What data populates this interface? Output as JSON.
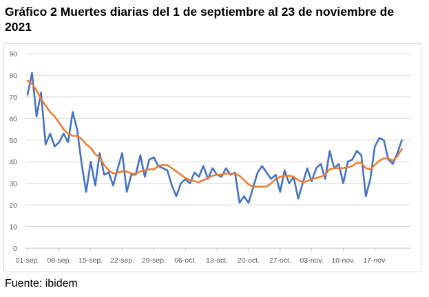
{
  "title": "Gráfico 2 Muertes diarias del 1 de septiembre al 23 de noviembre de 2021",
  "source": "Fuente: ibidem",
  "chart_data": {
    "type": "line",
    "title": "Gráfico 2 Muertes diarias del 1 de septiembre al 23 de noviembre de 2021",
    "xlabel": "",
    "ylabel": "",
    "ylim": [
      0,
      90
    ],
    "yticks": [
      0,
      10,
      20,
      30,
      40,
      50,
      60,
      70,
      80,
      90
    ],
    "grid": true,
    "legend": "none",
    "x_tick_labels": [
      "01-sep.",
      "08-sep.",
      "15-sep.",
      "22-sep.",
      "29-sep.",
      "06-oct.",
      "13-oct.",
      "20-oct.",
      "27-oct.",
      "03-nov.",
      "10-nov.",
      "17-nov."
    ],
    "x_tick_interval_days": 7,
    "series": [
      {
        "color": "#4472c4",
        "values": [
          71,
          81,
          61,
          72,
          48,
          53,
          47,
          49,
          53,
          49,
          63,
          55,
          39,
          26,
          40,
          29,
          44,
          34,
          35,
          29,
          37,
          44,
          26,
          34,
          34,
          43,
          33,
          41,
          42,
          38,
          37,
          36,
          29,
          24,
          30,
          32,
          30,
          35,
          33,
          38,
          32,
          37,
          34,
          33,
          37,
          34,
          35,
          21,
          24,
          21,
          28,
          35,
          38,
          35,
          32,
          34,
          26,
          36,
          30,
          33,
          23,
          30,
          37,
          31,
          37,
          39,
          32,
          45,
          37,
          39,
          30,
          40,
          41,
          45,
          43,
          24,
          32,
          47,
          51,
          50,
          41,
          39,
          44,
          50
        ]
      },
      {
        "color": "#ed7d31",
        "values": [
          77.5,
          76,
          73,
          69,
          66,
          63,
          61,
          58,
          55,
          53,
          52,
          52,
          50.5,
          48,
          46.5,
          43.5,
          42,
          38.5,
          36,
          34.5,
          35,
          35.5,
          35.5,
          34.5,
          34.5,
          35.5,
          36,
          36.5,
          36.5,
          38,
          38.5,
          38.5,
          37,
          35.5,
          34,
          32.5,
          31.5,
          31,
          30.5,
          31.5,
          32.5,
          33.5,
          34,
          34,
          34.5,
          34.5,
          34.5,
          33.5,
          31.5,
          29.5,
          28.5,
          28.5,
          28.5,
          28.5,
          30,
          32,
          33,
          33.5,
          33.5,
          33,
          31.5,
          30.5,
          31,
          32,
          32.5,
          33,
          34,
          36.5,
          37,
          37,
          37,
          37.5,
          38,
          39.5,
          39.5,
          37,
          36.5,
          38.5,
          40.5,
          41.5,
          41.5,
          40.5,
          42.5,
          46
        ]
      }
    ]
  }
}
